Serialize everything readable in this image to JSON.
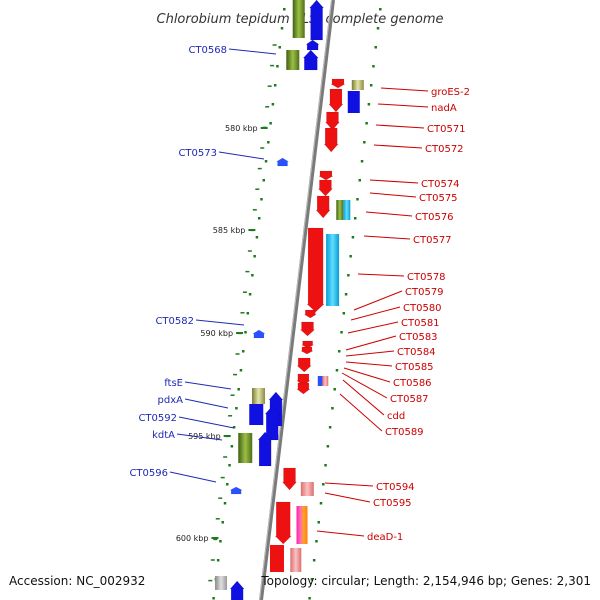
{
  "title": "Chlorobium tepidum TLS, complete genome",
  "accession": "Accession: NC_002932",
  "summary": "Topology: circular; Length: 2,154,946 bp; Genes: 2,301",
  "colors": {
    "reverse_label": "#1f2ab5",
    "forward_label": "#cc0000",
    "reverse_gene": "#1010e0",
    "forward_gene": "#ee1111",
    "rna": "#2a50ff",
    "backbone": "#777777",
    "tick": "#1e7a1e"
  },
  "scale_ticks": [
    {
      "kbp": 580,
      "label": "580 kbp"
    },
    {
      "kbp": 585,
      "label": "585 kbp"
    },
    {
      "kbp": 590,
      "label": "590 kbp"
    },
    {
      "kbp": 595,
      "label": "595 kbp"
    },
    {
      "kbp": 600,
      "label": "600 kbp"
    }
  ],
  "reverse_genes": [
    {
      "label": "CT0568"
    },
    {
      "label": "CT0573"
    },
    {
      "label": "CT0582"
    },
    {
      "label": "ftsE"
    },
    {
      "label": "pdxA"
    },
    {
      "label": "CT0592"
    },
    {
      "label": "kdtA"
    },
    {
      "label": "CT0596"
    }
  ],
  "forward_genes": [
    {
      "label": "groES-2"
    },
    {
      "label": "nadA"
    },
    {
      "label": "CT0571"
    },
    {
      "label": "CT0572"
    },
    {
      "label": "CT0574"
    },
    {
      "label": "CT0575"
    },
    {
      "label": "CT0576"
    },
    {
      "label": "CT0577"
    },
    {
      "label": "CT0578"
    },
    {
      "label": "CT0579"
    },
    {
      "label": "CT0580"
    },
    {
      "label": "CT0581"
    },
    {
      "label": "CT0583"
    },
    {
      "label": "CT0584"
    },
    {
      "label": "CT0585"
    },
    {
      "label": "CT0586"
    },
    {
      "label": "CT0587"
    },
    {
      "label": "cdd"
    },
    {
      "label": "CT0589"
    },
    {
      "label": "CT0594"
    },
    {
      "label": "CT0595"
    },
    {
      "label": "deaD-1"
    }
  ]
}
